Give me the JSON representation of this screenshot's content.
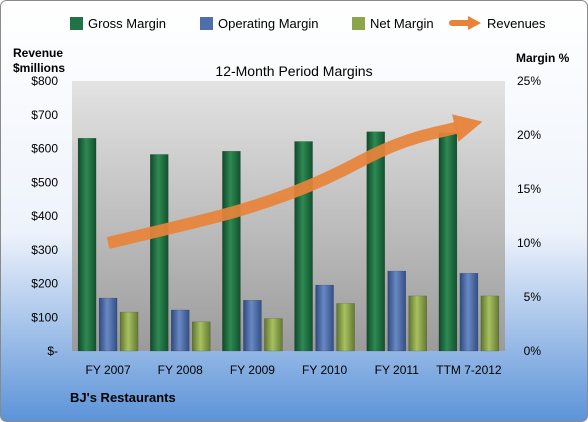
{
  "chart_data": {
    "type": "bar",
    "title": "12-Month Period Margins",
    "footer": "BJ's Restaurants",
    "left_axis": {
      "title_line1": "Revenue",
      "title_line2": "$millions",
      "ylim": [
        0,
        800
      ],
      "ticks": [
        0,
        100,
        200,
        300,
        400,
        500,
        600,
        700,
        800
      ],
      "tick_labels": [
        "$-",
        "$100",
        "$200",
        "$300",
        "$400",
        "$500",
        "$600",
        "$700",
        "$800"
      ]
    },
    "right_axis": {
      "title": "Margin %",
      "ylim": [
        0,
        25
      ],
      "ticks": [
        0,
        5,
        10,
        15,
        20,
        25
      ],
      "tick_labels": [
        "0%",
        "5%",
        "10%",
        "15%",
        "20%",
        "25%"
      ]
    },
    "categories": [
      "FY 2007",
      "FY 2008",
      "FY 2009",
      "FY 2010",
      "FY 2011",
      "TTM 7-2012"
    ],
    "series": [
      {
        "name": "Gross Margin",
        "type": "bar",
        "axis": "right",
        "color": "#217346",
        "values": [
          19.7,
          18.2,
          18.5,
          19.4,
          20.3,
          20.2
        ]
      },
      {
        "name": "Operating Margin",
        "type": "bar",
        "axis": "right",
        "color": "#4f6eaa",
        "values": [
          4.9,
          3.8,
          4.7,
          6.1,
          7.4,
          7.2
        ]
      },
      {
        "name": "Net Margin",
        "type": "bar",
        "axis": "right",
        "color": "#8ea64a",
        "values": [
          3.6,
          2.7,
          3.0,
          4.4,
          5.1,
          5.1
        ]
      },
      {
        "name": "Revenues",
        "type": "line",
        "axis": "left",
        "color": "#e8833a",
        "values": [
          320,
          370,
          425,
          505,
          620,
          670
        ]
      }
    ],
    "legend_position": "top",
    "grid": false
  }
}
